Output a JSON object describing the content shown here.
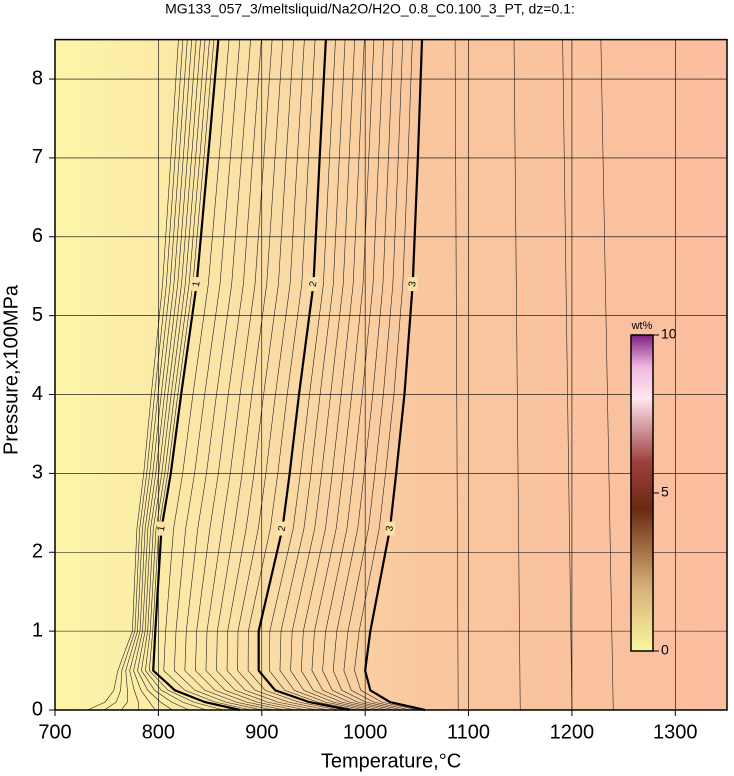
{
  "chart_data": {
    "type": "contour",
    "title": "MG133_057_3/meltsliquid/Na2O/H2O_0.8_C0.100_3_PT, dz=0.1:",
    "xlabel": "Temperature,°C",
    "ylabel": "Pressure,x100MPa",
    "xlim": [
      700,
      1350
    ],
    "xticks": [
      700,
      800,
      900,
      1000,
      1100,
      1200,
      1300
    ],
    "ylim": [
      0,
      8.5
    ],
    "yticks": [
      0,
      1,
      2,
      3,
      4,
      5,
      6,
      7,
      8
    ],
    "grid": true,
    "contours": [
      {
        "level": 1,
        "x": [
          879,
          845,
          816,
          795,
          797,
          803,
          812,
          822,
          837,
          848,
          858
        ],
        "y": [
          0,
          0.1,
          0.25,
          0.5,
          1,
          2.3,
          3,
          4,
          5.4,
          7,
          8.5
        ]
      },
      {
        "level": 2,
        "x": [
          985,
          946,
          913,
          897,
          897,
          920,
          927,
          936,
          950,
          956,
          962
        ],
        "y": [
          0,
          0.1,
          0.25,
          0.5,
          1,
          2.3,
          3,
          4,
          5.4,
          7,
          8.5
        ]
      },
      {
        "level": 3,
        "x": [
          1058,
          1024,
          1005,
          1000,
          1005,
          1024,
          1030,
          1038,
          1046,
          1051,
          1055
        ],
        "y": [
          0,
          0.1,
          0.25,
          0.5,
          1,
          2.3,
          3,
          4,
          5.4,
          7,
          8.5
        ]
      }
    ],
    "colorbar": {
      "label": "wt%",
      "lim": [
        0,
        10
      ],
      "ticks": [
        0,
        5,
        10
      ]
    }
  }
}
